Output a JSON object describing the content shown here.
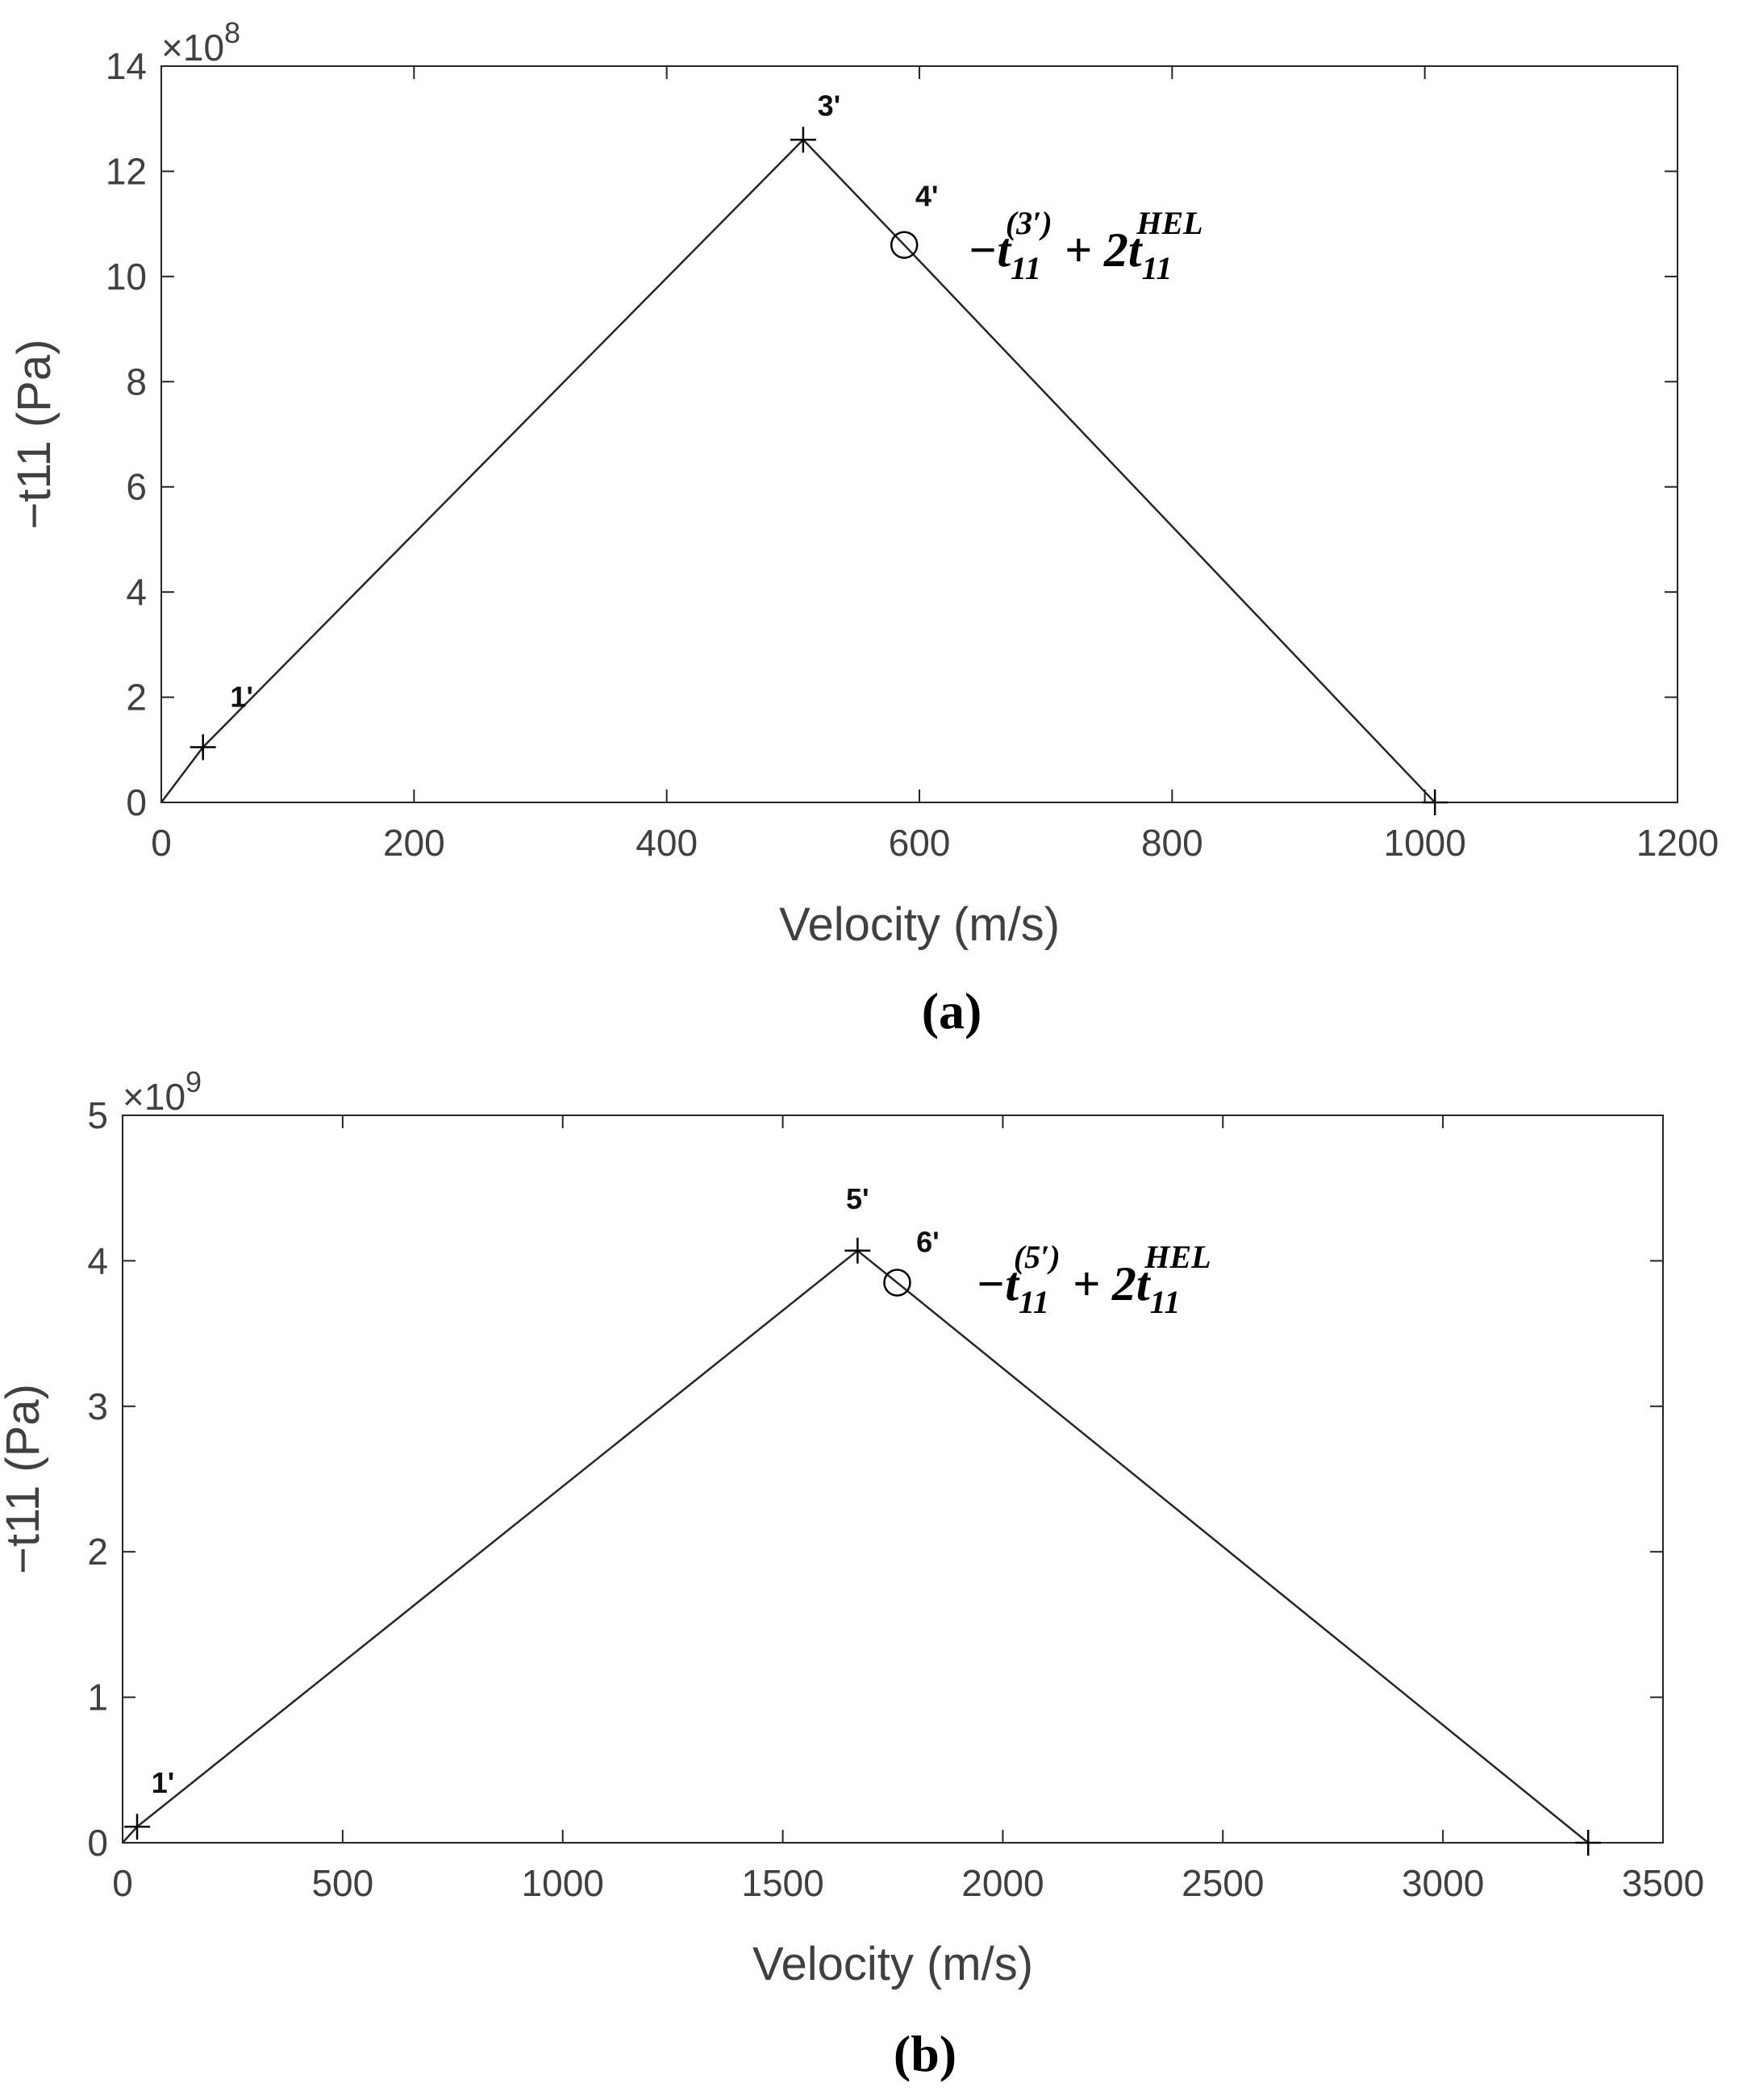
{
  "chart_data": [
    {
      "type": "line",
      "caption": "(a)",
      "caption_letter": "a",
      "xlabel": "Velocity (m/s)",
      "ylabel": "−t11 (Pa)",
      "exponent_label": "×10",
      "exponent_power": "8",
      "xlim": [
        0,
        1200
      ],
      "ylim": [
        0,
        14
      ],
      "xticks": [
        0,
        200,
        400,
        600,
        800,
        1000,
        1200
      ],
      "yticks": [
        0,
        2,
        4,
        6,
        8,
        10,
        12,
        14
      ],
      "grid": false,
      "line_color": "#262626",
      "series": [
        {
          "x": [
            0,
            33,
            508,
            588,
            1008
          ],
          "y": [
            0,
            1.05,
            12.6,
            10.6,
            0
          ]
        }
      ],
      "markers": [
        {
          "label": "1'",
          "x": 33,
          "y": 1.05,
          "symbol": "plus"
        },
        {
          "label": "3'",
          "x": 508,
          "y": 12.6,
          "symbol": "plus"
        },
        {
          "label": "4'",
          "x": 588,
          "y": 10.6,
          "symbol": "circle"
        },
        {
          "label": "",
          "x": 1008,
          "y": 0,
          "symbol": "plus"
        }
      ],
      "annotation": {
        "prefix": "−t",
        "sub": "11",
        "sup": "(3′)",
        "middle": " + 2t",
        "sub2": "11",
        "sup2": "HEL"
      }
    },
    {
      "type": "line",
      "caption": "(b)",
      "caption_letter": "b",
      "xlabel": "Velocity (m/s)",
      "ylabel": "−t11 (Pa)",
      "exponent_label": "×10",
      "exponent_power": "9",
      "xlim": [
        0,
        3500
      ],
      "ylim": [
        0,
        5
      ],
      "xticks": [
        0,
        500,
        1000,
        1500,
        2000,
        2500,
        3000,
        3500
      ],
      "yticks": [
        0,
        1,
        2,
        3,
        4,
        5
      ],
      "grid": false,
      "line_color": "#262626",
      "series": [
        {
          "x": [
            0,
            33,
            1670,
            1760,
            3330
          ],
          "y": [
            0,
            0.11,
            4.07,
            3.85,
            0
          ]
        }
      ],
      "markers": [
        {
          "label": "1'",
          "x": 33,
          "y": 0.11,
          "symbol": "plus"
        },
        {
          "label": "5'",
          "x": 1670,
          "y": 4.07,
          "symbol": "plus"
        },
        {
          "label": "6'",
          "x": 1760,
          "y": 3.85,
          "symbol": "circle"
        },
        {
          "label": "",
          "x": 3330,
          "y": 0,
          "symbol": "plus"
        }
      ],
      "annotation": {
        "prefix": "−t",
        "sub": "11",
        "sup": "(5′)",
        "middle": " + 2t",
        "sub2": "11",
        "sup2": "HEL"
      }
    }
  ]
}
